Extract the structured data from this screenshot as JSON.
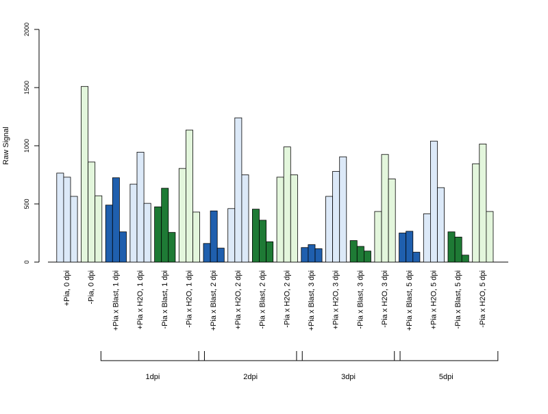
{
  "chart_data": {
    "type": "bar",
    "title": "",
    "xlabel": "",
    "ylabel": "Raw Signal",
    "ylim": [
      0,
      2000
    ],
    "y_ticks": [
      "0",
      "500",
      "1000",
      "1500",
      "2000"
    ],
    "grid": false,
    "legend": "none",
    "categories": [
      "+Pia, 0 dpi",
      "-Pia, 0 dpi",
      "+Pia x Blast, 1 dpi",
      "+Pia x H2O, 1 dpi",
      "-Pia x Blast, 1 dpi",
      "-Pia x H2O, 1 dpi",
      "+Pia x Blast, 2 dpi",
      "+Pia x H2O, 2 dpi",
      "-Pia x Blast, 2 dpi",
      "-Pia x H2O, 2 dpi",
      "+Pia x Blast, 3 dpi",
      "+Pia x H2O, 3 dpi",
      "-Pia x Blast, 3 dpi",
      "-Pia x H2O, 3 dpi",
      "+Pia x Blast, 5 dpi",
      "+Pia x H2O, 5 dpi",
      "-Pia x Blast, 5 dpi",
      "-Pia x H2O, 5 dpi"
    ],
    "values": [
      [
        765,
        730,
        565
      ],
      [
        1510,
        860,
        570
      ],
      [
        490,
        725,
        260
      ],
      [
        670,
        945,
        505
      ],
      [
        475,
        635,
        255
      ],
      [
        805,
        1135,
        430
      ],
      [
        160,
        440,
        120
      ],
      [
        460,
        1240,
        750
      ],
      [
        455,
        360,
        175
      ],
      [
        730,
        990,
        750
      ],
      [
        125,
        150,
        115
      ],
      [
        565,
        780,
        905
      ],
      [
        185,
        135,
        95
      ],
      [
        435,
        925,
        715
      ],
      [
        250,
        265,
        85
      ],
      [
        415,
        1040,
        640
      ],
      [
        260,
        215,
        60
      ],
      [
        845,
        1015,
        435
      ]
    ],
    "group_colors": [
      "#dce9f8",
      "#e3f6dc",
      "#1f5fae",
      "#dce9f8",
      "#1e7a35",
      "#e3f6dc",
      "#1f5fae",
      "#dce9f8",
      "#1e7a35",
      "#e3f6dc",
      "#1f5fae",
      "#dce9f8",
      "#1e7a35",
      "#e3f6dc",
      "#1f5fae",
      "#dce9f8",
      "#1e7a35",
      "#e3f6dc"
    ],
    "brackets": [
      {
        "label": "1dpi",
        "from": 2,
        "to": 5
      },
      {
        "label": "2dpi",
        "from": 6,
        "to": 9
      },
      {
        "label": "3dpi",
        "from": 10,
        "to": 13
      },
      {
        "label": "5dpi",
        "from": 14,
        "to": 17
      }
    ]
  }
}
